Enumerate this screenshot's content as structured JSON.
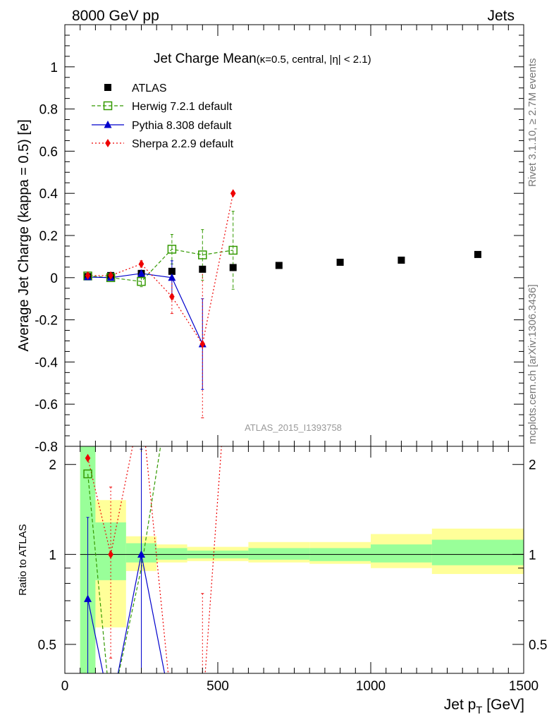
{
  "header": {
    "left": "8000 GeV pp",
    "right": "Jets"
  },
  "side": {
    "rivet": "Rivet 3.1.10, ≥ 2.7M events",
    "mcplots": "mcplots.cern.ch [arXiv:1306.3436]"
  },
  "chart_data": [
    {
      "type": "scatter",
      "title": "Jet Charge Mean",
      "subtitle": "(κ=0.5, central, |η| < 2.1)",
      "ylabel": "Average Jet Charge (kappa = 0.5) [e]",
      "xlim": [
        0,
        1500
      ],
      "ylim": [
        -0.8,
        1.2
      ],
      "grid": false,
      "legend_position": "top-left",
      "y_ticks": [
        "-0.8",
        "-0.6",
        "-0.4",
        "-0.2",
        "0",
        "0.2",
        "0.4",
        "0.6",
        "0.8",
        "1"
      ],
      "watermark": "ATLAS_2015_I1393758",
      "series": [
        {
          "name": "ATLAS",
          "style": "data",
          "color": "#000000",
          "x": [
            75,
            150,
            250,
            350,
            450,
            550,
            700,
            900,
            1100,
            1350
          ],
          "y": [
            0.005,
            0.01,
            0.02,
            0.03,
            0.04,
            0.048,
            0.058,
            0.073,
            0.083,
            0.11
          ]
        },
        {
          "name": "Herwig 7.2.1 default",
          "style": "herwig",
          "color": "#339900",
          "x": [
            75,
            150,
            250,
            350,
            450,
            550
          ],
          "y": [
            0.008,
            0.0,
            -0.018,
            0.135,
            0.108,
            0.13
          ],
          "err": [
            0.01,
            0.012,
            0.025,
            0.07,
            0.12,
            0.185
          ]
        },
        {
          "name": "Pythia 8.308 default",
          "style": "pythia",
          "color": "#0000cc",
          "x": [
            75,
            150,
            250,
            350,
            450
          ],
          "y": [
            0.003,
            0.0,
            0.02,
            0.0,
            -0.315
          ],
          "err": [
            0.005,
            0.008,
            0.015,
            0.08,
            0.215
          ]
        },
        {
          "name": "Sherpa 2.2.9 default",
          "style": "sherpa",
          "color": "#ee0000",
          "x": [
            75,
            150,
            250,
            350,
            450,
            550
          ],
          "y": [
            0.01,
            0.01,
            0.065,
            -0.09,
            -0.315,
            0.4
          ],
          "err": [
            0.005,
            0.007,
            0.015,
            0.08,
            0.35,
            0.005
          ]
        }
      ]
    },
    {
      "type": "line",
      "ylabel": "Ratio to ATLAS",
      "xlabel": "Jet p",
      "xlabel_sub": "T",
      "xlabel_unit": " [GeV]",
      "xlim": [
        0,
        1500
      ],
      "ylim": [
        0.4,
        2.3
      ],
      "y_scale": "log",
      "y_ticks": [
        "0.5",
        "1",
        "2"
      ],
      "x_ticks": [
        "0",
        "500",
        "1000",
        "1500"
      ],
      "bins": [
        {
          "lo": 50,
          "hi": 100,
          "inner": [
            0.4,
            2.3
          ],
          "outer": [
            0.4,
            2.3
          ]
        },
        {
          "lo": 100,
          "hi": 200,
          "inner": [
            0.82,
            1.28
          ],
          "outer": [
            0.57,
            1.52
          ]
        },
        {
          "lo": 200,
          "hi": 300,
          "inner": [
            0.94,
            1.09
          ],
          "outer": [
            0.88,
            1.15
          ]
        },
        {
          "lo": 300,
          "hi": 400,
          "inner": [
            0.96,
            1.05
          ],
          "outer": [
            0.94,
            1.08
          ]
        },
        {
          "lo": 400,
          "hi": 500,
          "inner": [
            0.97,
            1.03
          ],
          "outer": [
            0.95,
            1.06
          ]
        },
        {
          "lo": 500,
          "hi": 600,
          "inner": [
            0.97,
            1.03
          ],
          "outer": [
            0.95,
            1.06
          ]
        },
        {
          "lo": 600,
          "hi": 800,
          "inner": [
            0.96,
            1.05
          ],
          "outer": [
            0.94,
            1.1
          ]
        },
        {
          "lo": 800,
          "hi": 1000,
          "inner": [
            0.95,
            1.05
          ],
          "outer": [
            0.93,
            1.1
          ]
        },
        {
          "lo": 1000,
          "hi": 1200,
          "inner": [
            0.94,
            1.08
          ],
          "outer": [
            0.9,
            1.17
          ]
        },
        {
          "lo": 1200,
          "hi": 1500,
          "inner": [
            0.92,
            1.12
          ],
          "outer": [
            0.86,
            1.22
          ]
        }
      ],
      "series": [
        {
          "name": "Herwig 7.2.1 default",
          "style": "herwig",
          "color": "#339900",
          "x": [
            75,
            150,
            250,
            350
          ],
          "y": [
            1.86,
            0.3,
            0.9,
            4.0
          ],
          "markers": [
            75
          ]
        },
        {
          "name": "Pythia 8.308 default",
          "style": "pythia",
          "color": "#0000cc",
          "x": [
            75,
            150,
            250,
            350
          ],
          "y": [
            0.71,
            0.3,
            1.0,
            0.3
          ],
          "markers": [
            75,
            250
          ],
          "err_bars": [
            {
              "x": 75,
              "lo": 0.35,
              "hi": 1.33
            },
            {
              "x": 250,
              "lo": 0.38,
              "hi": 2.25
            }
          ]
        },
        {
          "name": "Sherpa 2.2.9 default",
          "style": "sherpa",
          "color": "#ee0000",
          "x": [
            75,
            150,
            250,
            350,
            450,
            550
          ],
          "y": [
            2.1,
            1.0,
            3.2,
            0.3,
            0.3,
            8.0
          ],
          "markers": [
            75,
            150
          ],
          "err_bars": [
            {
              "x": 150,
              "lo": 0.45,
              "hi": 1.68
            },
            {
              "x": 450,
              "lo": 0.4,
              "hi": 0.74
            }
          ]
        }
      ]
    }
  ]
}
